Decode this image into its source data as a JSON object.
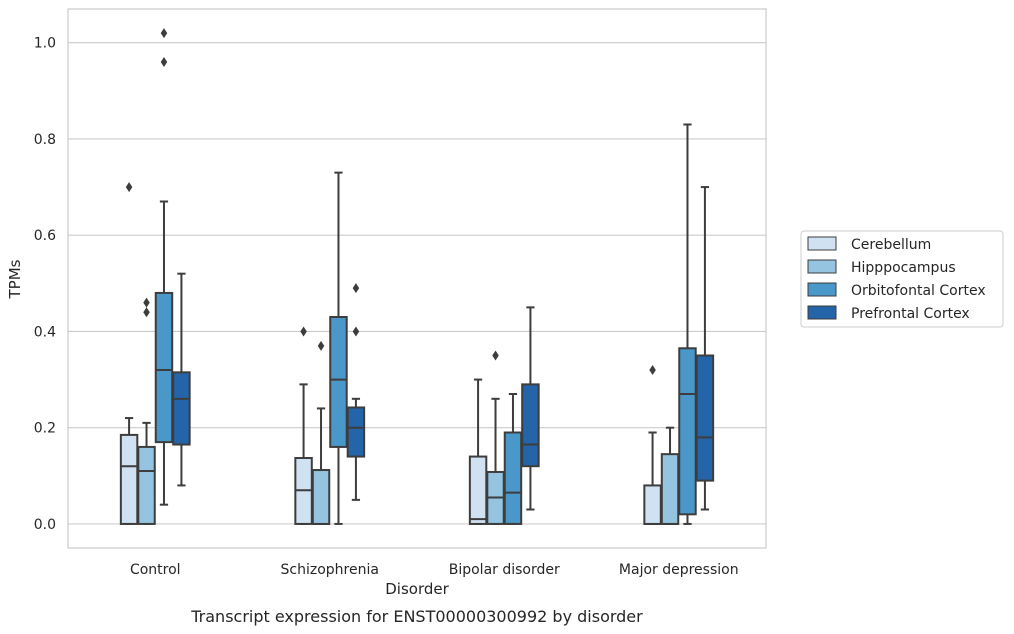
{
  "chart_data": {
    "type": "box",
    "caption": "Transcript expression for ENST00000300992 by disorder",
    "xlabel": "Disorder",
    "ylabel": "TPMs",
    "ylim": [
      -0.05,
      1.07
    ],
    "yticks": [
      0.0,
      0.2,
      0.4,
      0.6,
      0.8,
      1.0
    ],
    "ytick_labels": [
      "0.0",
      "0.2",
      "0.4",
      "0.6",
      "0.8",
      "1.0"
    ],
    "grid": "horizontal",
    "legend_position": "right",
    "categories": [
      "Control",
      "Schizophrenia",
      "Bipolar disorder",
      "Major depression"
    ],
    "series": [
      {
        "name": "Cerebellum",
        "color": "#d0e1f2",
        "boxes": [
          {
            "whislo": 0.0,
            "q1": 0.0,
            "med": 0.12,
            "q3": 0.185,
            "whishi": 0.22,
            "fliers": [
              0.7
            ]
          },
          {
            "whislo": 0.0,
            "q1": 0.0,
            "med": 0.07,
            "q3": 0.137,
            "whishi": 0.29,
            "fliers": [
              0.4
            ]
          },
          {
            "whislo": 0.0,
            "q1": 0.0,
            "med": 0.01,
            "q3": 0.14,
            "whishi": 0.3,
            "fliers": []
          },
          {
            "whislo": 0.0,
            "q1": 0.0,
            "med": 0.0,
            "q3": 0.08,
            "whishi": 0.19,
            "fliers": [
              0.32
            ]
          }
        ]
      },
      {
        "name": "Hipppocampus",
        "color": "#94c4df",
        "boxes": [
          {
            "whislo": 0.0,
            "q1": 0.0,
            "med": 0.11,
            "q3": 0.16,
            "whishi": 0.21,
            "fliers": [
              0.44,
              0.46
            ]
          },
          {
            "whislo": 0.0,
            "q1": 0.0,
            "med": 0.0,
            "q3": 0.112,
            "whishi": 0.24,
            "fliers": [
              0.37
            ]
          },
          {
            "whislo": 0.0,
            "q1": 0.0,
            "med": 0.055,
            "q3": 0.108,
            "whishi": 0.26,
            "fliers": [
              0.35
            ]
          },
          {
            "whislo": 0.0,
            "q1": 0.0,
            "med": 0.0,
            "q3": 0.145,
            "whishi": 0.2,
            "fliers": []
          }
        ]
      },
      {
        "name": "Orbitofontal Cortex",
        "color": "#4a98c9",
        "boxes": [
          {
            "whislo": 0.04,
            "q1": 0.17,
            "med": 0.32,
            "q3": 0.48,
            "whishi": 0.67,
            "fliers": [
              0.96,
              1.02
            ]
          },
          {
            "whislo": 0.0,
            "q1": 0.16,
            "med": 0.3,
            "q3": 0.43,
            "whishi": 0.73,
            "fliers": []
          },
          {
            "whislo": 0.0,
            "q1": 0.0,
            "med": 0.065,
            "q3": 0.19,
            "whishi": 0.27,
            "fliers": []
          },
          {
            "whislo": 0.0,
            "q1": 0.02,
            "med": 0.27,
            "q3": 0.365,
            "whishi": 0.83,
            "fliers": []
          }
        ]
      },
      {
        "name": "Prefrontal Cortex",
        "color": "#2464a8",
        "boxes": [
          {
            "whislo": 0.08,
            "q1": 0.165,
            "med": 0.26,
            "q3": 0.315,
            "whishi": 0.52,
            "fliers": []
          },
          {
            "whislo": 0.05,
            "q1": 0.14,
            "med": 0.2,
            "q3": 0.242,
            "whishi": 0.26,
            "fliers": [
              0.4,
              0.49
            ]
          },
          {
            "whislo": 0.03,
            "q1": 0.12,
            "med": 0.165,
            "q3": 0.29,
            "whishi": 0.45,
            "fliers": []
          },
          {
            "whislo": 0.03,
            "q1": 0.09,
            "med": 0.18,
            "q3": 0.35,
            "whishi": 0.7,
            "fliers": []
          }
        ]
      }
    ]
  }
}
